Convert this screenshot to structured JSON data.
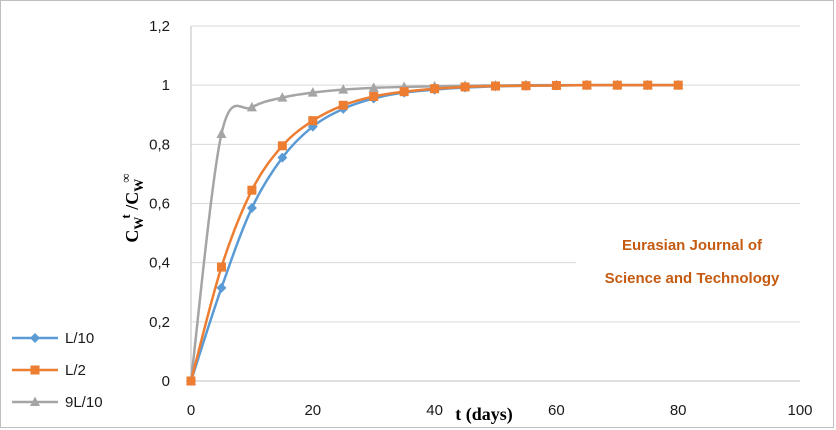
{
  "chart_data": {
    "type": "line",
    "xlabel": "t (days)",
    "ylabel": {
      "main": "C",
      "sub1": "W",
      "sup1": "t",
      "sep": " /C",
      "sub2": "W",
      "sup2": "∞"
    },
    "xlim": [
      0,
      100
    ],
    "ylim": [
      0,
      1.2
    ],
    "x_ticks": [
      0,
      20,
      40,
      60,
      80,
      100
    ],
    "y_ticks": [
      0,
      0.2,
      0.4,
      0.6,
      0.8,
      1,
      1.2
    ],
    "x_tick_labels": [
      "0",
      "20",
      "40",
      "60",
      "80",
      "100"
    ],
    "y_tick_labels": [
      "0",
      "0,2",
      "0,4",
      "0,6",
      "0,8",
      "1",
      "1,2"
    ],
    "grid": "horizontal",
    "legend_position": "bottom-left",
    "annotation": [
      "Eurasian Journal of",
      "Science and Technology"
    ],
    "x": [
      0,
      5,
      10,
      15,
      20,
      25,
      30,
      35,
      40,
      45,
      50,
      55,
      60,
      65,
      70,
      75,
      80
    ],
    "series": [
      {
        "name": "L/10",
        "color": "#5b9bd5",
        "marker": "diamond",
        "values": [
          0,
          0.315,
          0.585,
          0.755,
          0.86,
          0.92,
          0.955,
          0.975,
          0.985,
          0.992,
          0.996,
          0.998,
          0.999,
          1,
          1,
          1,
          1
        ]
      },
      {
        "name": "L/2",
        "color": "#ed7d31",
        "marker": "square",
        "values": [
          0,
          0.385,
          0.645,
          0.795,
          0.88,
          0.932,
          0.962,
          0.978,
          0.988,
          0.994,
          0.997,
          0.998,
          0.999,
          1,
          1,
          1,
          1
        ]
      },
      {
        "name": "9L/10",
        "color": "#a5a5a5",
        "marker": "triangle",
        "values": [
          0,
          0.835,
          0.925,
          0.958,
          0.975,
          0.985,
          0.991,
          0.994,
          0.996,
          0.998,
          0.999,
          1,
          1,
          1,
          1,
          1,
          1
        ]
      }
    ]
  }
}
